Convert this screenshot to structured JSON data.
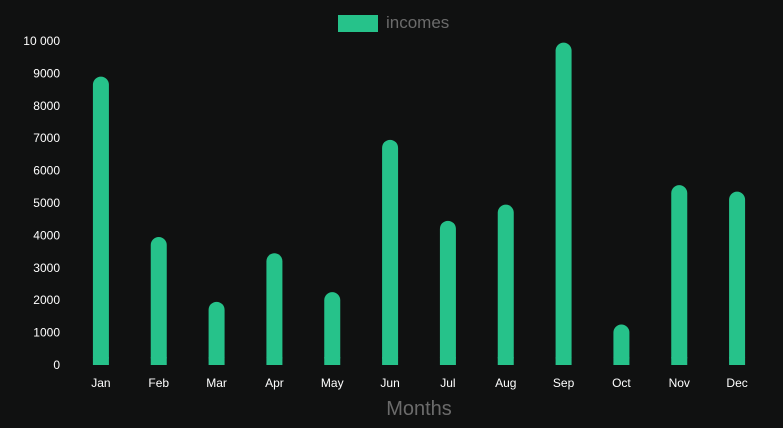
{
  "chart_data": {
    "type": "bar",
    "title": "",
    "xlabel": "Months",
    "ylabel": "",
    "categories": [
      "Jan",
      "Feb",
      "Mar",
      "Apr",
      "May",
      "Jun",
      "Jul",
      "Aug",
      "Sep",
      "Oct",
      "Nov",
      "Dec"
    ],
    "series": [
      {
        "name": "incomes",
        "values": [
          8900,
          3950,
          1950,
          3450,
          2250,
          6950,
          4450,
          4950,
          9950,
          1250,
          5550,
          5350
        ],
        "color": "#26c28a"
      }
    ],
    "ylim": [
      0,
      10000
    ],
    "yticks": [
      0,
      1000,
      2000,
      3000,
      4000,
      5000,
      6000,
      7000,
      8000,
      9000,
      10000
    ],
    "ytick_labels": [
      "0",
      "1000",
      "2000",
      "3000",
      "4000",
      "5000",
      "6000",
      "7000",
      "8000",
      "9000",
      "10 000"
    ],
    "grid": false,
    "legend_position": "top-center",
    "background": "#101111"
  }
}
